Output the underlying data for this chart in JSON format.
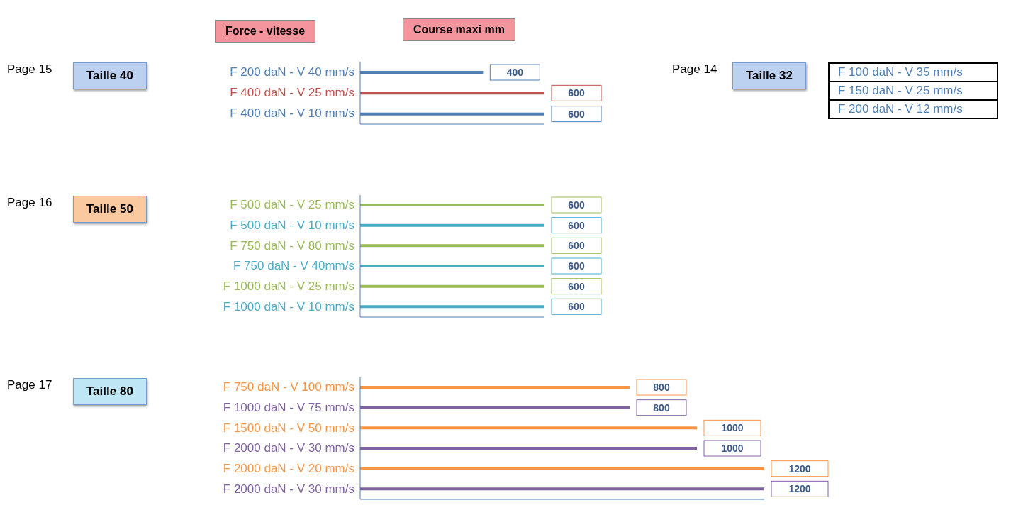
{
  "chart_data": [
    {
      "type": "bar",
      "orientation": "horizontal",
      "ylabel": "Force - vitesse",
      "xlabel": "Course maxi mm",
      "annotations": [
        "Page 15",
        "Taille 40"
      ],
      "categories": [
        "F  200 daN - V 40 mm/s",
        "F  400 daN - V 25 mm/s",
        "F  400 daN - V 10 mm/s"
      ],
      "values": [
        400,
        600,
        600
      ],
      "colors": [
        "#4f7fb5",
        "#c0504d",
        "#4f7fb5"
      ],
      "data_labels": true,
      "tick_labels": "y"
    },
    {
      "type": "bar",
      "orientation": "horizontal",
      "annotations": [
        "Page 16",
        "Taille 50"
      ],
      "categories": [
        "F  500 daN - V 25 mm/s",
        "F  500 daN - V 10 mm/s",
        "F 750 daN - V 80 mm/s",
        "F  750 daN - V 40mm/s",
        "F 1000 daN - V 25 mm/s",
        "F 1000 daN - V 10 mm/s"
      ],
      "values": [
        600,
        600,
        600,
        600,
        600,
        600
      ],
      "colors": [
        "#9bbb59",
        "#4bacc6",
        "#9bbb59",
        "#4bacc6",
        "#9bbb59",
        "#4bacc6"
      ],
      "data_labels": true,
      "tick_labels": "y"
    },
    {
      "type": "bar",
      "orientation": "horizontal",
      "annotations": [
        "Page 17",
        "Taille 80"
      ],
      "categories": [
        "F   750 daN - V 100 mm/s",
        "F 1000 daN - V 75 mm/s",
        "F 1500 daN - V 50 mm/s",
        "F 2000 daN - V 30 mm/s",
        "F  2000 daN - V  20 mm/s",
        "F 2000 daN - V 30 mm/s"
      ],
      "values": [
        800,
        800,
        1000,
        1000,
        1200,
        1200
      ],
      "colors": [
        "#f79646",
        "#8064a2",
        "#f79646",
        "#8064a2",
        "#f79646",
        "#8064a2"
      ],
      "data_labels": true,
      "tick_labels": "y"
    },
    {
      "type": "other",
      "title": "Taille 32",
      "annotations": [
        "Page 14",
        "F  100 daN - V 35 mm/s",
        "F  150 daN - V 25 mm/s",
        "F  200 daN - V 12 mm/s"
      ]
    }
  ]
}
